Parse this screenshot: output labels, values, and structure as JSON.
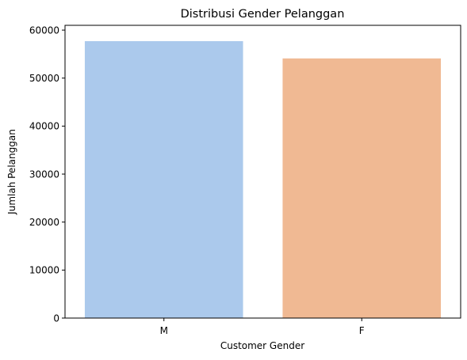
{
  "chart_data": {
    "type": "bar",
    "title": "Distribusi Gender Pelanggan",
    "xlabel": "Customer Gender",
    "ylabel": "Jumlah Pelanggan",
    "categories": [
      "M",
      "F"
    ],
    "values": [
      57700,
      54100
    ],
    "colors": [
      "#abc9ec",
      "#f0b993"
    ],
    "ylim": [
      0,
      61000
    ],
    "yticks": [
      0,
      10000,
      20000,
      30000,
      40000,
      50000,
      60000
    ],
    "grid": false,
    "legend": "none"
  }
}
